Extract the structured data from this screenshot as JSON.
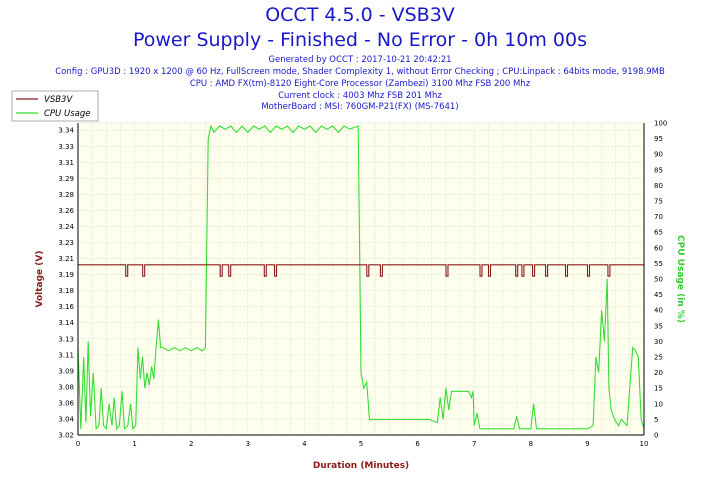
{
  "header": {
    "title": "OCCT 4.5.0 - VSB3V",
    "subtitle": "Power Supply - Finished - No Error - 0h 10m 00s",
    "info_lines": [
      "Generated by OCCT : 2017-10-21 20:42:21",
      "Config : GPU3D : 1920 x 1200 @ 60 Hz, FullScreen mode, Shader Complexity 1, without Error Checking ; CPU:Linpack : 64bits mode, 9198.9MB",
      "CPU : AMD FX(tm)-8120 Eight-Core Processor (Zambezi) 3100 Mhz FSB 200 Mhz",
      "Current clock : 4003 Mhz FSB 201 Mhz",
      "MotherBoard : MSI: 760GM-P21(FX) (MS-7641)"
    ]
  },
  "colors": {
    "title": "#1818c8",
    "voltage": "#8b1a1a",
    "cpu": "#33dd33",
    "plot_bg": "#ffffee",
    "grid": "#cccccc",
    "cpu_axis_label": "#33cc33",
    "voltage_axis_label": "#8b1a1a"
  },
  "chart_data": {
    "type": "line",
    "xlabel": "Duration (Minutes)",
    "ylabel_left": "Voltage (V)",
    "ylabel_right": "CPU Usage (in %)",
    "xlim": [
      0,
      10
    ],
    "ylim_left": [
      3.02,
      3.35
    ],
    "ylim_right": [
      0,
      100
    ],
    "grid": true,
    "legend_position": "top-left",
    "x_ticks": [
      "0",
      "1",
      "2",
      "3",
      "4",
      "5",
      "6",
      "7",
      "8",
      "9",
      "10"
    ],
    "y_left_ticks": [
      "3.02",
      "3.04",
      "3.06",
      "3.08",
      "3.09",
      "3.11",
      "3.13",
      "3.14",
      "3.16",
      "3.18",
      "3.19",
      "3.21",
      "3.23",
      "3.24",
      "3.26",
      "3.28",
      "3.29",
      "3.31",
      "3.33",
      "3.34"
    ],
    "y_right_ticks": [
      "0",
      "5",
      "10",
      "15",
      "20",
      "25",
      "30",
      "35",
      "40",
      "45",
      "50",
      "55",
      "60",
      "65",
      "70",
      "75",
      "80",
      "85",
      "90",
      "95",
      "100"
    ],
    "series": [
      {
        "name": "VSB3V",
        "axis": "left",
        "baseline": 3.2,
        "dips": [
          {
            "x": 0.86,
            "value": 3.188
          },
          {
            "x": 1.16,
            "value": 3.188
          },
          {
            "x": 2.53,
            "value": 3.188
          },
          {
            "x": 2.68,
            "value": 3.188
          },
          {
            "x": 3.31,
            "value": 3.188
          },
          {
            "x": 3.49,
            "value": 3.188
          },
          {
            "x": 5.12,
            "value": 3.188
          },
          {
            "x": 5.36,
            "value": 3.188
          },
          {
            "x": 6.52,
            "value": 3.188
          },
          {
            "x": 7.12,
            "value": 3.188
          },
          {
            "x": 7.27,
            "value": 3.188
          },
          {
            "x": 7.75,
            "value": 3.188
          },
          {
            "x": 7.86,
            "value": 3.188
          },
          {
            "x": 8.05,
            "value": 3.188
          },
          {
            "x": 8.28,
            "value": 3.188
          },
          {
            "x": 8.63,
            "value": 3.188
          },
          {
            "x": 9.02,
            "value": 3.188
          },
          {
            "x": 9.38,
            "value": 3.188
          }
        ]
      },
      {
        "name": "CPU Usage",
        "axis": "right",
        "points": [
          [
            0.0,
            28
          ],
          [
            0.05,
            2
          ],
          [
            0.1,
            25
          ],
          [
            0.14,
            4
          ],
          [
            0.18,
            30
          ],
          [
            0.22,
            6
          ],
          [
            0.27,
            20
          ],
          [
            0.32,
            2
          ],
          [
            0.37,
            3
          ],
          [
            0.41,
            15
          ],
          [
            0.45,
            3
          ],
          [
            0.5,
            2
          ],
          [
            0.55,
            10
          ],
          [
            0.6,
            3
          ],
          [
            0.64,
            12
          ],
          [
            0.68,
            2
          ],
          [
            0.73,
            3
          ],
          [
            0.78,
            14
          ],
          [
            0.82,
            2
          ],
          [
            0.88,
            3
          ],
          [
            0.93,
            10
          ],
          [
            0.97,
            2
          ],
          [
            1.02,
            3
          ],
          [
            1.06,
            28
          ],
          [
            1.1,
            18
          ],
          [
            1.14,
            25
          ],
          [
            1.18,
            15
          ],
          [
            1.22,
            20
          ],
          [
            1.26,
            16
          ],
          [
            1.3,
            22
          ],
          [
            1.34,
            18
          ],
          [
            1.38,
            28
          ],
          [
            1.42,
            37
          ],
          [
            1.46,
            28
          ],
          [
            1.5,
            28
          ],
          [
            1.6,
            27
          ],
          [
            1.7,
            28
          ],
          [
            1.8,
            27
          ],
          [
            1.9,
            28
          ],
          [
            2.0,
            27
          ],
          [
            2.1,
            28
          ],
          [
            2.2,
            27
          ],
          [
            2.25,
            28
          ],
          [
            2.3,
            95
          ],
          [
            2.35,
            99
          ],
          [
            2.4,
            97
          ],
          [
            2.5,
            99
          ],
          [
            2.6,
            98
          ],
          [
            2.7,
            99
          ],
          [
            2.8,
            97
          ],
          [
            2.9,
            99
          ],
          [
            3.0,
            97
          ],
          [
            3.1,
            99
          ],
          [
            3.2,
            98
          ],
          [
            3.3,
            99
          ],
          [
            3.4,
            97
          ],
          [
            3.5,
            99
          ],
          [
            3.6,
            98
          ],
          [
            3.7,
            99
          ],
          [
            3.8,
            97
          ],
          [
            3.9,
            99
          ],
          [
            4.0,
            98
          ],
          [
            4.1,
            99
          ],
          [
            4.2,
            97
          ],
          [
            4.3,
            99
          ],
          [
            4.4,
            98
          ],
          [
            4.5,
            99
          ],
          [
            4.6,
            97
          ],
          [
            4.7,
            99
          ],
          [
            4.8,
            98
          ],
          [
            4.95,
            99
          ],
          [
            5.0,
            20
          ],
          [
            5.05,
            15
          ],
          [
            5.1,
            17
          ],
          [
            5.15,
            5
          ],
          [
            5.25,
            5
          ],
          [
            5.4,
            5
          ],
          [
            5.6,
            5
          ],
          [
            5.8,
            5
          ],
          [
            6.0,
            5
          ],
          [
            6.2,
            5
          ],
          [
            6.35,
            4
          ],
          [
            6.4,
            12
          ],
          [
            6.45,
            5
          ],
          [
            6.5,
            15
          ],
          [
            6.55,
            8
          ],
          [
            6.6,
            14
          ],
          [
            6.7,
            14
          ],
          [
            6.8,
            14
          ],
          [
            6.9,
            14
          ],
          [
            6.95,
            12
          ],
          [
            6.98,
            14
          ],
          [
            7.0,
            3
          ],
          [
            7.05,
            7
          ],
          [
            7.1,
            2
          ],
          [
            7.2,
            2
          ],
          [
            7.3,
            2
          ],
          [
            7.4,
            2
          ],
          [
            7.5,
            2
          ],
          [
            7.6,
            2
          ],
          [
            7.7,
            2
          ],
          [
            7.75,
            6
          ],
          [
            7.8,
            2
          ],
          [
            7.9,
            2
          ],
          [
            8.0,
            2
          ],
          [
            8.05,
            10
          ],
          [
            8.1,
            2
          ],
          [
            8.2,
            2
          ],
          [
            8.4,
            2
          ],
          [
            8.6,
            2
          ],
          [
            8.8,
            2
          ],
          [
            9.0,
            2
          ],
          [
            9.1,
            3
          ],
          [
            9.15,
            25
          ],
          [
            9.2,
            20
          ],
          [
            9.25,
            40
          ],
          [
            9.3,
            30
          ],
          [
            9.35,
            50
          ],
          [
            9.38,
            15
          ],
          [
            9.42,
            8
          ],
          [
            9.48,
            5
          ],
          [
            9.55,
            3
          ],
          [
            9.6,
            5
          ],
          [
            9.7,
            3
          ],
          [
            9.8,
            28
          ],
          [
            9.85,
            27
          ],
          [
            9.9,
            25
          ],
          [
            9.95,
            5
          ],
          [
            10.0,
            2
          ]
        ]
      }
    ]
  }
}
